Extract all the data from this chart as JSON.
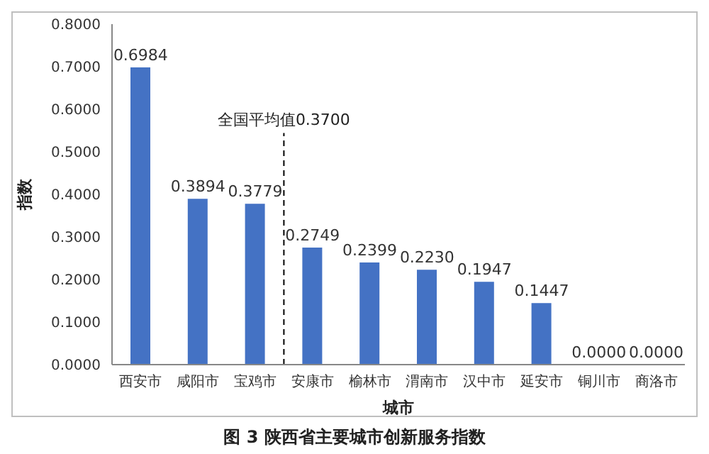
{
  "chart_data": {
    "type": "bar",
    "title": "图 3 陕西省主要城市创新服务指数",
    "xlabel": "城市",
    "ylabel": "指数",
    "categories": [
      "西安市",
      "咸阳市",
      "宝鸡市",
      "安康市",
      "榆林市",
      "渭南市",
      "汉中市",
      "延安市",
      "铜川市",
      "商洛市"
    ],
    "values": [
      0.6984,
      0.3894,
      0.3779,
      0.2749,
      0.2399,
      0.223,
      0.1947,
      0.1447,
      0,
      0
    ],
    "value_labels": [
      "0.6984",
      "0.3894",
      "0.3779",
      "0.2749",
      "0.2399",
      "0.2230",
      "0.1947",
      "0.1447",
      "0.0000",
      "0.0000"
    ],
    "color": "#4472c4",
    "ylim": [
      0,
      0.8
    ],
    "yticks": [
      {
        "value": 0,
        "label": "0.0000"
      },
      {
        "value": 0.1,
        "label": "0.1000"
      },
      {
        "value": 0.2,
        "label": "0.2000"
      },
      {
        "value": 0.3,
        "label": "0.3000"
      },
      {
        "value": 0.4,
        "label": "0.4000"
      },
      {
        "value": 0.5,
        "label": "0.5000"
      },
      {
        "value": 0.6,
        "label": "0.6000"
      },
      {
        "value": 0.7,
        "label": "0.7000"
      },
      {
        "value": 0.8,
        "label": "0.8000"
      }
    ],
    "annotations": [
      "全国平均值0.3700"
    ],
    "grid": false
  }
}
